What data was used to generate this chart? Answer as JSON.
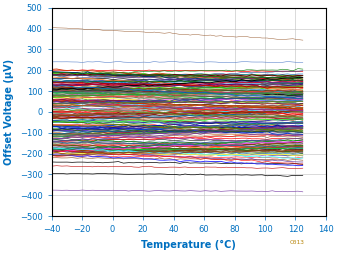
{
  "xlabel": "Temperature (°C)",
  "ylabel": "Offset Voltage (µV)",
  "xlim": [
    -40,
    140
  ],
  "ylim": [
    -500,
    500
  ],
  "xticks": [
    -40,
    -20,
    0,
    20,
    40,
    60,
    80,
    100,
    120,
    140
  ],
  "yticks": [
    -500,
    -400,
    -300,
    -200,
    -100,
    0,
    100,
    200,
    300,
    400,
    500
  ],
  "watermark": "C013",
  "seed": 7,
  "line_data": [
    [
      405,
      345,
      "#8B4513",
      0.3
    ],
    [
      240,
      238,
      "#4472C4",
      0.35
    ],
    [
      200,
      195,
      "#FF0000",
      0.5
    ],
    [
      185,
      175,
      "#C00000",
      0.5
    ],
    [
      175,
      160,
      "#FF0000",
      0.4
    ],
    [
      160,
      150,
      "#000000",
      0.5
    ],
    [
      150,
      140,
      "#008000",
      0.4
    ],
    [
      145,
      135,
      "#0070C0",
      0.4
    ],
    [
      140,
      130,
      "#7030A0",
      0.4
    ],
    [
      135,
      120,
      "#FF0000",
      0.5
    ],
    [
      130,
      118,
      "#000000",
      0.4
    ],
    [
      125,
      112,
      "#C55A11",
      0.4
    ],
    [
      120,
      108,
      "#70AD47",
      0.4
    ],
    [
      118,
      100,
      "#002060",
      0.4
    ],
    [
      110,
      95,
      "#843C0C",
      0.4
    ],
    [
      105,
      90,
      "#FF0000",
      0.5
    ],
    [
      100,
      85,
      "#000000",
      0.5
    ],
    [
      95,
      80,
      "#2F5496",
      0.4
    ],
    [
      90,
      75,
      "#538135",
      0.4
    ],
    [
      85,
      70,
      "#7030A0",
      0.4
    ],
    [
      80,
      65,
      "#C00000",
      0.4
    ],
    [
      75,
      60,
      "#833C00",
      0.4
    ],
    [
      70,
      58,
      "#375623",
      0.4
    ],
    [
      60,
      48,
      "#FF0000",
      0.4
    ],
    [
      50,
      38,
      "#000000",
      0.4
    ],
    [
      40,
      28,
      "#0070C0",
      0.4
    ],
    [
      30,
      18,
      "#008000",
      0.4
    ],
    [
      20,
      10,
      "#7030A0",
      0.4
    ],
    [
      10,
      0,
      "#C55A11",
      0.4
    ],
    [
      5,
      -5,
      "#843C0C",
      0.4
    ],
    [
      0,
      -10,
      "#FF0000",
      0.5
    ],
    [
      -5,
      -15,
      "#000000",
      0.4
    ],
    [
      -10,
      -20,
      "#538135",
      0.4
    ],
    [
      -15,
      -25,
      "#2F5496",
      0.4
    ],
    [
      -20,
      -30,
      "#7030A0",
      0.4
    ],
    [
      -25,
      -35,
      "#C00000",
      0.4
    ],
    [
      -30,
      -40,
      "#833C00",
      0.4
    ],
    [
      -40,
      -50,
      "#375623",
      0.4
    ],
    [
      -50,
      -58,
      "#0070C0",
      0.4
    ],
    [
      -60,
      -68,
      "#FF0000",
      0.4
    ],
    [
      -70,
      -78,
      "#000000",
      0.4
    ],
    [
      -80,
      -88,
      "#008000",
      0.4
    ],
    [
      -90,
      -98,
      "#7030A0",
      0.4
    ],
    [
      -100,
      -110,
      "#C55A11",
      0.4
    ],
    [
      -110,
      -120,
      "#843C0C",
      0.4
    ],
    [
      -120,
      -130,
      "#FF0000",
      0.5
    ],
    [
      -130,
      -140,
      "#000000",
      0.4
    ],
    [
      -140,
      -150,
      "#2F5496",
      0.4
    ],
    [
      -150,
      -160,
      "#538135",
      0.4
    ],
    [
      -155,
      -165,
      "#C00000",
      0.4
    ],
    [
      -160,
      -170,
      "#FF0000",
      0.5
    ],
    [
      -170,
      -180,
      "#000000",
      0.4
    ],
    [
      -175,
      -185,
      "#833C00",
      0.4
    ],
    [
      -180,
      -190,
      "#375623",
      0.4
    ],
    [
      -190,
      -200,
      "#0070C0",
      0.4
    ],
    [
      -200,
      -210,
      "#7030A0",
      0.4
    ],
    [
      -210,
      -220,
      "#FF0000",
      0.4
    ],
    [
      -220,
      -230,
      "#843C0C",
      0.4
    ],
    [
      -240,
      -248,
      "#000000",
      0.5
    ],
    [
      -260,
      -270,
      "#C00000",
      0.4
    ],
    [
      -295,
      -305,
      "#000000",
      0.5
    ],
    [
      -375,
      -382,
      "#7030A0",
      0.4
    ]
  ]
}
